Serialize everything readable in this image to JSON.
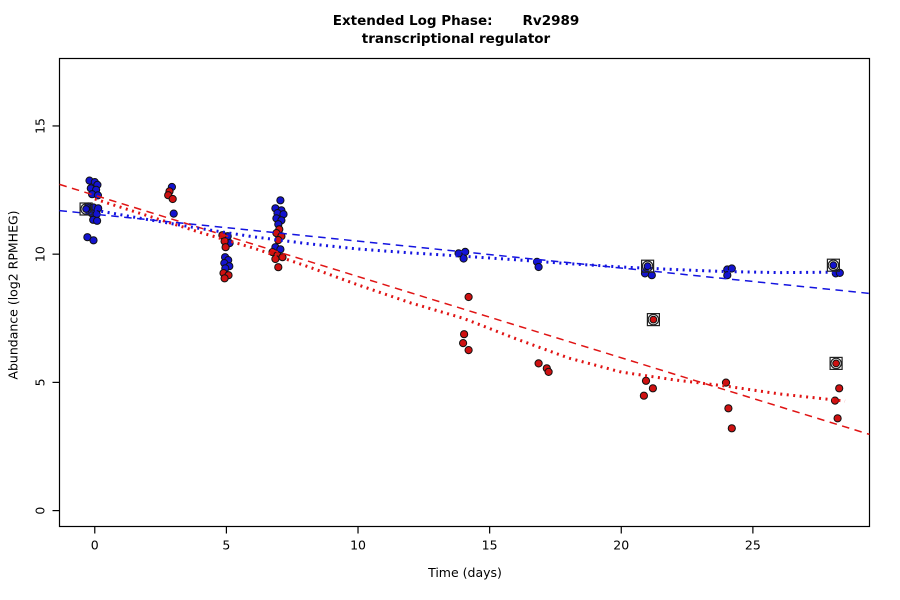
{
  "chart_data": {
    "type": "scatter",
    "title_left": "Extended Log Phase:",
    "title_gene": "Rv2989",
    "subtitle": "transcriptional regulator",
    "xlabel": "Time  (days)",
    "ylabel": "Abundance  (log2 RPMHEG)",
    "xlim": [
      -1.34,
      29.43
    ],
    "ylim": [
      -0.62,
      17.63
    ],
    "xticks": [
      0,
      5,
      10,
      15,
      20,
      25
    ],
    "yticks": [
      0,
      5,
      10,
      15
    ],
    "grid": false,
    "legend": "none",
    "colors": {
      "blue_points": "#1313cf",
      "red_points": "#cf1111",
      "blue_line": "#1414e0",
      "red_line": "#e01414",
      "axis": "#000000",
      "flag_outline": "#222222"
    },
    "series": [
      {
        "name": "blue-series",
        "point_color": "#1313cf",
        "points": [
          [
            -0.2,
            12.87
          ],
          [
            0.0,
            12.81
          ],
          [
            0.1,
            12.7
          ],
          [
            -0.15,
            12.57
          ],
          [
            0.05,
            12.51
          ],
          [
            -0.1,
            12.34
          ],
          [
            0.12,
            12.29
          ],
          [
            -0.25,
            11.86
          ],
          [
            -0.05,
            11.82
          ],
          [
            0.13,
            11.79
          ],
          [
            -0.12,
            11.6
          ],
          [
            0.07,
            11.56
          ],
          [
            -0.06,
            11.34
          ],
          [
            0.09,
            11.3
          ],
          [
            -0.28,
            10.66
          ],
          [
            -0.05,
            10.54
          ],
          [
            2.93,
            12.62
          ],
          [
            3.0,
            11.58
          ],
          [
            5.05,
            10.7
          ],
          [
            5.12,
            10.43
          ],
          [
            4.95,
            9.88
          ],
          [
            5.07,
            9.77
          ],
          [
            4.92,
            9.65
          ],
          [
            5.11,
            9.53
          ],
          [
            4.96,
            9.45
          ],
          [
            7.05,
            12.1
          ],
          [
            6.86,
            11.79
          ],
          [
            7.09,
            11.71
          ],
          [
            6.94,
            11.6
          ],
          [
            7.17,
            11.56
          ],
          [
            6.9,
            11.4
          ],
          [
            7.09,
            11.32
          ],
          [
            6.97,
            11.17
          ],
          [
            6.86,
            10.27
          ],
          [
            7.05,
            10.19
          ],
          [
            13.82,
            10.03
          ],
          [
            14.07,
            10.09
          ],
          [
            14.01,
            9.83
          ],
          [
            16.8,
            9.7
          ],
          [
            16.86,
            9.5
          ],
          [
            20.9,
            9.25
          ],
          [
            21.16,
            9.18
          ],
          [
            24.03,
            9.4
          ],
          [
            24.2,
            9.44
          ],
          [
            24.03,
            9.18
          ],
          [
            28.15,
            9.25
          ],
          [
            28.3,
            9.27
          ]
        ],
        "flagged_points": [
          [
            -0.33,
            11.76
          ],
          [
            21.0,
            9.53
          ],
          [
            28.06,
            9.57
          ]
        ]
      },
      {
        "name": "red-series",
        "point_color": "#cf1111",
        "points": [
          [
            2.84,
            12.45
          ],
          [
            2.79,
            12.3
          ],
          [
            2.96,
            12.15
          ],
          [
            4.85,
            10.74
          ],
          [
            4.93,
            10.5
          ],
          [
            4.97,
            10.27
          ],
          [
            4.89,
            9.26
          ],
          [
            5.08,
            9.18
          ],
          [
            4.93,
            9.06
          ],
          [
            7.01,
            10.97
          ],
          [
            6.9,
            10.82
          ],
          [
            7.09,
            10.7
          ],
          [
            6.97,
            10.55
          ],
          [
            6.75,
            10.08
          ],
          [
            6.94,
            9.96
          ],
          [
            7.13,
            9.88
          ],
          [
            6.86,
            9.81
          ],
          [
            6.97,
            9.49
          ],
          [
            14.2,
            8.33
          ],
          [
            14.03,
            6.88
          ],
          [
            13.99,
            6.53
          ],
          [
            14.2,
            6.26
          ],
          [
            16.86,
            5.74
          ],
          [
            17.17,
            5.55
          ],
          [
            17.24,
            5.41
          ],
          [
            20.94,
            5.06
          ],
          [
            21.2,
            4.77
          ],
          [
            20.86,
            4.48
          ],
          [
            23.98,
            4.99
          ],
          [
            24.07,
            3.99
          ],
          [
            24.2,
            3.21
          ],
          [
            28.28,
            4.77
          ],
          [
            28.12,
            4.29
          ],
          [
            28.22,
            3.6
          ]
        ],
        "flagged_points": [
          [
            21.22,
            7.45
          ],
          [
            28.16,
            5.74
          ]
        ]
      }
    ],
    "lines": [
      {
        "name": "blue-linear-fit-line",
        "color": "#1414e0",
        "style": "longdash",
        "width": 1.5,
        "points": [
          [
            -1.34,
            11.7
          ],
          [
            29.43,
            8.47
          ]
        ]
      },
      {
        "name": "red-linear-fit-line",
        "color": "#e01414",
        "style": "longdash",
        "width": 1.5,
        "points": [
          [
            -1.34,
            12.72
          ],
          [
            29.43,
            2.97
          ]
        ]
      },
      {
        "name": "blue-smooth-fit-line",
        "color": "#1414e0",
        "style": "dotted",
        "width": 3,
        "points": [
          [
            0,
            11.72
          ],
          [
            2,
            11.35
          ],
          [
            4,
            11.0
          ],
          [
            6,
            10.68
          ],
          [
            8,
            10.42
          ],
          [
            10,
            10.2
          ],
          [
            12,
            10.05
          ],
          [
            14,
            9.92
          ],
          [
            16,
            9.78
          ],
          [
            18,
            9.63
          ],
          [
            20,
            9.5
          ],
          [
            22,
            9.4
          ],
          [
            24,
            9.32
          ],
          [
            26,
            9.28
          ],
          [
            28.5,
            9.3
          ]
        ]
      },
      {
        "name": "red-smooth-fit-line",
        "color": "#e01414",
        "style": "dotted",
        "width": 3,
        "points": [
          [
            0,
            12.15
          ],
          [
            2,
            11.5
          ],
          [
            4,
            10.85
          ],
          [
            6,
            10.25
          ],
          [
            8,
            9.55
          ],
          [
            10,
            8.8
          ],
          [
            12,
            8.1
          ],
          [
            14,
            7.5
          ],
          [
            16,
            6.7
          ],
          [
            18,
            5.95
          ],
          [
            20,
            5.4
          ],
          [
            22,
            5.1
          ],
          [
            24,
            4.85
          ],
          [
            26,
            4.55
          ],
          [
            28.5,
            4.27
          ]
        ]
      }
    ]
  }
}
